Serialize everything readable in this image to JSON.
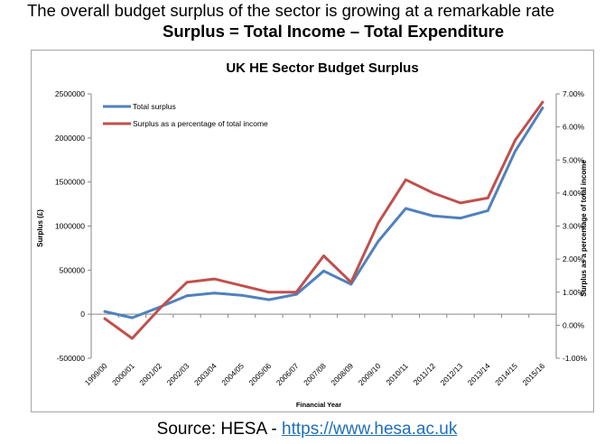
{
  "slide": {
    "headline": "The overall budget surplus of the sector is growing at a remarkable rate",
    "formula": "Surplus = Total Income – Total Expenditure",
    "source_prefix": "Source: HESA - ",
    "source_link": "https://www.hesa.ac.uk"
  },
  "colors": {
    "total_surplus": "#4f81bd",
    "surplus_pct": "#c0504d"
  },
  "chart_data": {
    "type": "line",
    "title": "UK HE Sector Budget Surplus",
    "xlabel": "Financial Year",
    "ylabel": "Surplus (£)",
    "y2label": "Surplus as a percentage of total income",
    "grid": false,
    "legend_position": "top-left",
    "categories": [
      "1999/00",
      "2000/01",
      "2001/02",
      "2002/03",
      "2003/04",
      "2004/05",
      "2005/06",
      "2006/07",
      "2007/08",
      "2008/09",
      "2009/10",
      "2010/11",
      "2011/12",
      "2012/13",
      "2013/14",
      "2014/15",
      "2015/16"
    ],
    "ylim": [
      -500000,
      2500000
    ],
    "yticks": [
      -500000,
      0,
      500000,
      1000000,
      1500000,
      2000000,
      2500000
    ],
    "ytick_labels": [
      "-500000",
      "0",
      "500000",
      "1000000",
      "1500000",
      "2000000",
      "2500000"
    ],
    "y2lim": [
      -0.01,
      0.07
    ],
    "y2ticks": [
      -0.01,
      0,
      0.01,
      0.02,
      0.03,
      0.04,
      0.05,
      0.06,
      0.07
    ],
    "y2tick_labels": [
      "-1.00%",
      "0.00%",
      "1.00%",
      "2.00%",
      "3.00%",
      "4.00%",
      "5.00%",
      "6.00%",
      "7.00%"
    ],
    "series": [
      {
        "name": "Total surplus",
        "axis": "left",
        "values": [
          30000,
          -40000,
          80000,
          210000,
          240000,
          215000,
          165000,
          225000,
          490000,
          340000,
          830000,
          1200000,
          1115000,
          1090000,
          1175000,
          1850000,
          2340000
        ]
      },
      {
        "name": "Surplus as a percentage of total income",
        "axis": "right",
        "values": [
          0.002,
          -0.004,
          0.005,
          0.013,
          0.014,
          0.012,
          0.01,
          0.01,
          0.021,
          0.013,
          0.031,
          0.044,
          0.04,
          0.037,
          0.0385,
          0.056,
          0.0675
        ]
      }
    ]
  }
}
